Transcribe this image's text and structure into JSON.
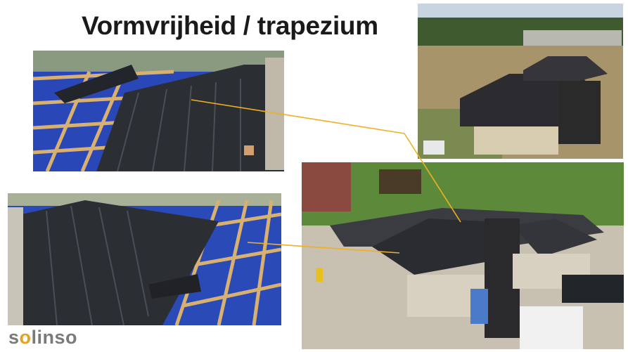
{
  "slide": {
    "title": "Vormvrijheid / trapezium",
    "logo": {
      "prefix": "s",
      "accent": "o",
      "suffix": "linso",
      "accent_color": "#e8a020",
      "text_color": "#7a7a7a"
    },
    "connector_color": "#f0b020",
    "photos": [
      {
        "id": "top-left",
        "subject": "solar roof panels on blue membrane with timber battens"
      },
      {
        "id": "top-right",
        "subject": "house with dark tiled hip roof"
      },
      {
        "id": "bottom-left",
        "subject": "trapezium solar panels on roof battens"
      },
      {
        "id": "bottom-right",
        "subject": "aerial view of house with solar hip roof"
      }
    ]
  }
}
